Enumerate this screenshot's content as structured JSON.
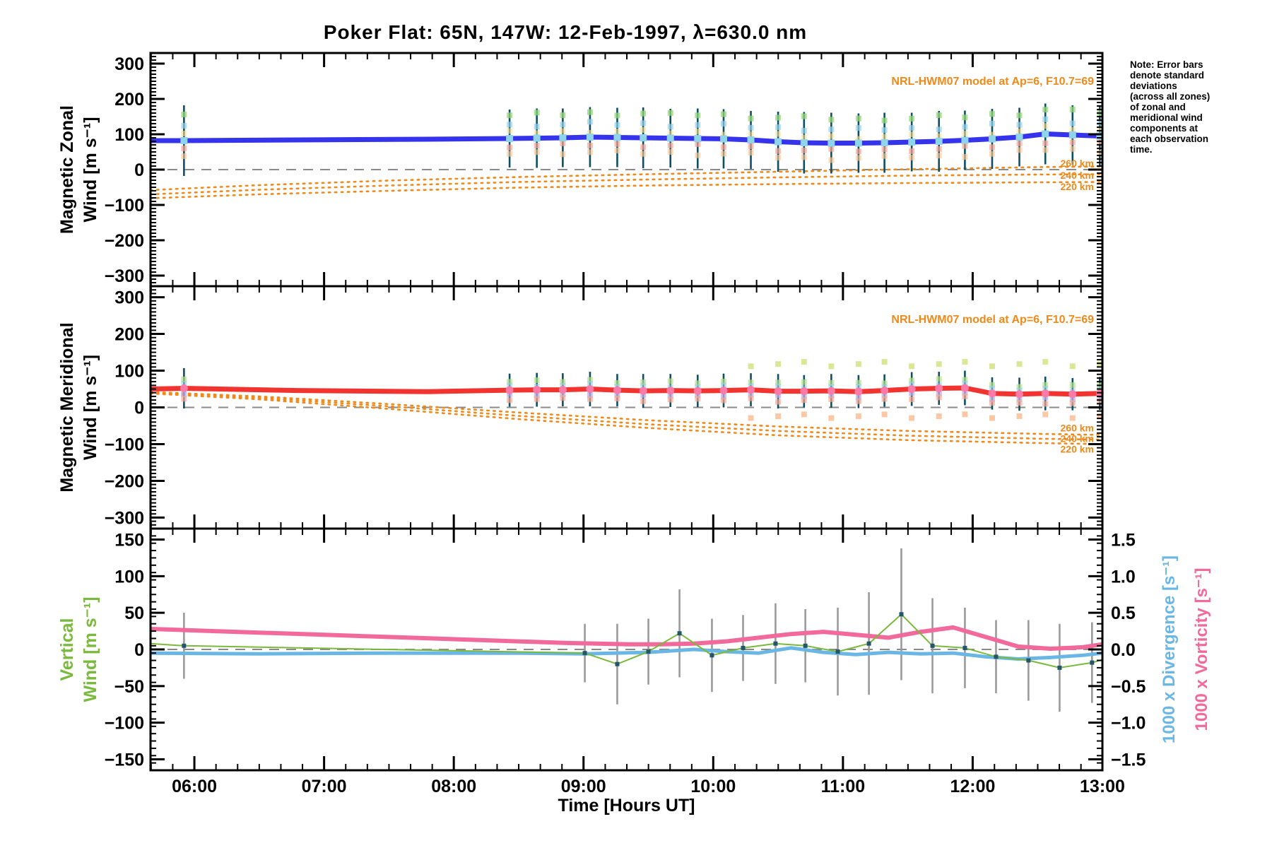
{
  "page": {
    "note_lines": [
      "Note: Error bars",
      "denote standard",
      "deviations",
      "(across all zones)",
      "of zonal and",
      "meridional wind",
      "components at",
      "each observation",
      "time."
    ]
  },
  "chart_data": {
    "type": "line",
    "title": "Poker Flat: 65N, 147W: 12-Feb-1997, λ=630.0 nm",
    "xlabel": "Time [Hours UT]",
    "x_axis": {
      "range_hours": [
        5.662,
        13.0
      ],
      "major_ticks": [
        {
          "hour": 6,
          "label": "06:00"
        },
        {
          "hour": 7,
          "label": "07:00"
        },
        {
          "hour": 8,
          "label": "08:00"
        },
        {
          "hour": 9,
          "label": "09:00"
        },
        {
          "hour": 10,
          "label": "10:00"
        },
        {
          "hour": 11,
          "label": "11:00"
        },
        {
          "hour": 12,
          "label": "12:00"
        },
        {
          "hour": 13,
          "label": "13:00"
        }
      ],
      "minor_step_minutes": 10
    },
    "model_time": [
      5.662,
      6.5,
      7.5,
      8.5,
      9.5,
      10.5,
      11.5,
      12.5,
      13.0
    ],
    "panels": {
      "zonal": {
        "ylabel_lines": [
          "Magnetic Zonal",
          "Wind [m s⁻¹]"
        ],
        "ytick_range": [
          -300,
          300
        ],
        "ytick_step": 100,
        "yminor_step": 10,
        "zero_line": 0,
        "model_label": "NRL-HWM07 model at Ap=6, F10.7=69",
        "model_curves": [
          {
            "label": "260 km",
            "v": [
              -58,
              -44,
              -31,
              -21,
              -13,
              -6,
              1,
              7,
              9
            ]
          },
          {
            "label": "240 km",
            "v": [
              -70,
              -57,
              -45,
              -35,
              -28,
              -22,
              -17,
              -14,
              -13
            ]
          },
          {
            "label": "220 km",
            "v": [
              -81,
              -70,
              -60,
              -51,
              -45,
              -41,
              -38,
              -36,
              -35
            ]
          }
        ],
        "observations": {
          "t": [
            5.92,
            8.43,
            8.64,
            8.84,
            9.05,
            9.26,
            9.46,
            9.67,
            9.88,
            10.08,
            10.29,
            10.5,
            10.7,
            10.91,
            11.12,
            11.32,
            11.53,
            11.74,
            11.94,
            12.15,
            12.36,
            12.56,
            12.77,
            12.98
          ],
          "v": [
            82,
            88,
            89,
            90,
            92,
            91,
            90,
            89,
            88,
            87,
            84,
            79,
            76,
            75,
            75,
            76,
            78,
            80,
            83,
            87,
            92,
            101,
            98,
            95
          ],
          "sigma": [
            100,
            82,
            84,
            83,
            85,
            84,
            86,
            83,
            85,
            84,
            82,
            85,
            87,
            86,
            84,
            85,
            83,
            86,
            84,
            85,
            83,
            86,
            84,
            85
          ]
        },
        "line": {
          "t": [
            5.662,
            5.92,
            6.8,
            7.8,
            8.43,
            8.64,
            8.84,
            9.05,
            9.26,
            9.46,
            9.67,
            9.88,
            10.08,
            10.29,
            10.5,
            10.7,
            10.91,
            11.12,
            11.32,
            11.53,
            11.74,
            11.94,
            12.15,
            12.36,
            12.56,
            12.77,
            12.98,
            13.0
          ],
          "v": [
            82,
            82,
            84,
            86,
            88,
            89,
            90,
            92,
            91,
            90,
            89,
            88,
            87,
            84,
            79,
            76,
            75,
            75,
            76,
            78,
            80,
            83,
            87,
            92,
            101,
            98,
            95,
            95
          ]
        },
        "colors": {
          "line": "#3533ec",
          "marker": "#8fd4ea",
          "errorbar": "#0e4f63",
          "model": "#ef8a1a"
        }
      },
      "meridional": {
        "ylabel_lines": [
          "Magnetic Meridional",
          "Wind [m s⁻¹]"
        ],
        "ytick_range": [
          -300,
          300
        ],
        "ytick_step": 100,
        "yminor_step": 10,
        "zero_line": 0,
        "model_label": "NRL-HWM07 model at Ap=6, F10.7=69",
        "model_curves": [
          {
            "label": "260 km",
            "v": [
              42,
              30,
              9,
              -14,
              -35,
              -52,
              -64,
              -72,
              -75
            ]
          },
          {
            "label": "240 km",
            "v": [
              40,
              26,
              3,
              -23,
              -46,
              -64,
              -77,
              -85,
              -88
            ]
          },
          {
            "label": "220 km",
            "v": [
              38,
              22,
              -4,
              -32,
              -56,
              -76,
              -89,
              -97,
              -100
            ]
          }
        ],
        "observations": {
          "t": [
            5.92,
            8.43,
            8.64,
            8.84,
            9.05,
            9.26,
            9.46,
            9.67,
            9.88,
            10.08,
            10.29,
            10.5,
            10.7,
            10.91,
            11.12,
            11.32,
            11.53,
            11.74,
            11.94,
            12.15,
            12.36,
            12.56,
            12.77,
            12.98
          ],
          "v": [
            52,
            47,
            48,
            48,
            50,
            47,
            45,
            46,
            45,
            46,
            48,
            44,
            44,
            45,
            43,
            46,
            50,
            52,
            53,
            38,
            36,
            38,
            36,
            38
          ],
          "sigma": [
            55,
            45,
            46,
            45,
            47,
            44,
            46,
            45,
            44,
            46,
            45,
            47,
            44,
            46,
            45,
            44,
            46,
            45,
            47,
            44,
            45,
            46,
            44,
            45
          ]
        },
        "line": {
          "t": [
            5.662,
            5.92,
            6.8,
            7.8,
            8.43,
            8.64,
            8.84,
            9.05,
            9.26,
            9.46,
            9.67,
            9.88,
            10.08,
            10.29,
            10.5,
            10.7,
            10.91,
            11.12,
            11.32,
            11.53,
            11.74,
            11.94,
            12.15,
            12.36,
            12.56,
            12.77,
            12.98,
            13.0
          ],
          "v": [
            50,
            52,
            46,
            43,
            47,
            48,
            48,
            50,
            47,
            45,
            46,
            45,
            46,
            48,
            44,
            44,
            45,
            43,
            46,
            50,
            52,
            53,
            38,
            36,
            38,
            36,
            38,
            38
          ]
        },
        "zone_markers": {
          "t": [
            10.29,
            10.5,
            10.7,
            10.91,
            11.12,
            11.32,
            11.53,
            11.74,
            11.94,
            12.15,
            12.36,
            12.56,
            12.77,
            12.98
          ],
          "high_value": 118,
          "low_value": -24
        },
        "colors": {
          "line": "#f23430",
          "marker": "#ff7aa6",
          "errorbar": "#0e4f63",
          "model": "#ef8a1a"
        }
      },
      "vertical": {
        "ylabel_lines": [
          "Vertical",
          "Wind [m s⁻¹]"
        ],
        "ytick_range": [
          -150,
          150
        ],
        "ytick_step": 50,
        "yminor_step": 10,
        "zero_line": 0,
        "right_axis": {
          "labels": [
            "1000 x Divergence [s⁻¹]",
            "1000 x Vorticity [s⁻¹]"
          ],
          "ytick_range": [
            -1.5,
            1.5
          ],
          "ytick_step": 0.5,
          "yminor_step": 0.1
        },
        "observations": {
          "t": [
            5.92,
            9.01,
            9.26,
            9.5,
            9.74,
            9.99,
            10.23,
            10.48,
            10.71,
            10.96,
            11.2,
            11.45,
            11.69,
            11.94,
            12.18,
            12.43,
            12.67,
            12.92
          ],
          "v": [
            5,
            -5,
            -20,
            -3,
            22,
            -8,
            2,
            8,
            5,
            -3,
            8,
            48,
            5,
            2,
            -10,
            -15,
            -25,
            -18
          ],
          "sigma": [
            45,
            40,
            55,
            45,
            60,
            50,
            45,
            55,
            50,
            60,
            70,
            90,
            65,
            55,
            50,
            55,
            60,
            55
          ]
        },
        "line": {
          "t": [
            5.662,
            5.92,
            9.01,
            9.26,
            9.5,
            9.74,
            9.99,
            10.23,
            10.48,
            10.71,
            10.96,
            11.2,
            11.45,
            11.69,
            11.94,
            12.18,
            12.43,
            12.67,
            12.92,
            13.0
          ],
          "v": [
            8,
            5,
            -5,
            -20,
            -3,
            22,
            -8,
            2,
            8,
            5,
            -3,
            8,
            48,
            5,
            2,
            -10,
            -15,
            -25,
            -18,
            -14
          ]
        },
        "divergence": {
          "t": [
            5.662,
            6.5,
            7.5,
            8.5,
            9.0,
            9.5,
            9.85,
            10.1,
            10.35,
            10.6,
            10.85,
            11.1,
            11.35,
            11.6,
            11.85,
            12.1,
            12.35,
            12.6,
            12.85,
            13.0
          ],
          "v": [
            -0.05,
            -0.06,
            -0.05,
            -0.05,
            -0.06,
            -0.04,
            0.0,
            -0.03,
            -0.05,
            0.02,
            -0.04,
            -0.07,
            -0.04,
            -0.06,
            -0.05,
            -0.1,
            -0.13,
            -0.11,
            -0.08,
            -0.05
          ]
        },
        "vorticity": {
          "t": [
            5.662,
            6.0,
            6.5,
            7.0,
            7.5,
            8.0,
            8.5,
            8.85,
            9.1,
            9.35,
            9.6,
            9.85,
            10.1,
            10.35,
            10.6,
            10.85,
            11.1,
            11.35,
            11.6,
            11.85,
            12.1,
            12.35,
            12.6,
            12.85,
            13.0
          ],
          "v": [
            0.28,
            0.26,
            0.23,
            0.2,
            0.17,
            0.14,
            0.11,
            0.09,
            0.08,
            0.07,
            0.07,
            0.08,
            0.11,
            0.16,
            0.21,
            0.24,
            0.2,
            0.16,
            0.24,
            0.3,
            0.17,
            0.04,
            0.01,
            0.03,
            0.07
          ]
        },
        "colors": {
          "wind": "#79b93c",
          "marker": "#24566b",
          "errorbar": "#9a9a9a",
          "divergence": "#6ab7e6",
          "vorticity": "#f2699b"
        }
      }
    },
    "grid": false,
    "zero_line_color": "#8a8a8a",
    "frame_color": "#000000"
  }
}
